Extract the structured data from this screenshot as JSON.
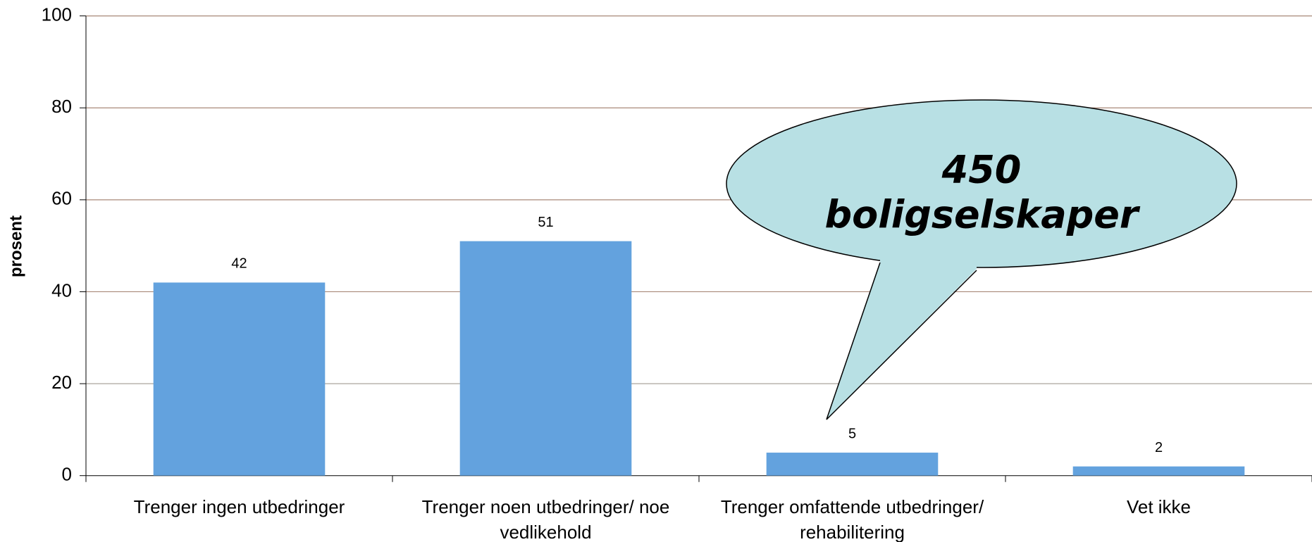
{
  "chart_data": {
    "type": "bar",
    "ylabel": "prosent",
    "categories": [
      "Trenger ingen utbedringer",
      "Trenger noen utbedringer/ noe vedlikehold",
      "Trenger omfattende utbedringer/ rehabilitering",
      "Vet ikke"
    ],
    "values": [
      42,
      51,
      5,
      2
    ],
    "color": "#63a2de",
    "ylim": [
      0,
      100
    ],
    "yticks": [
      0,
      20,
      40,
      60,
      80,
      100
    ],
    "grid": true,
    "annotation": [
      "450",
      "boligselskaper"
    ]
  }
}
